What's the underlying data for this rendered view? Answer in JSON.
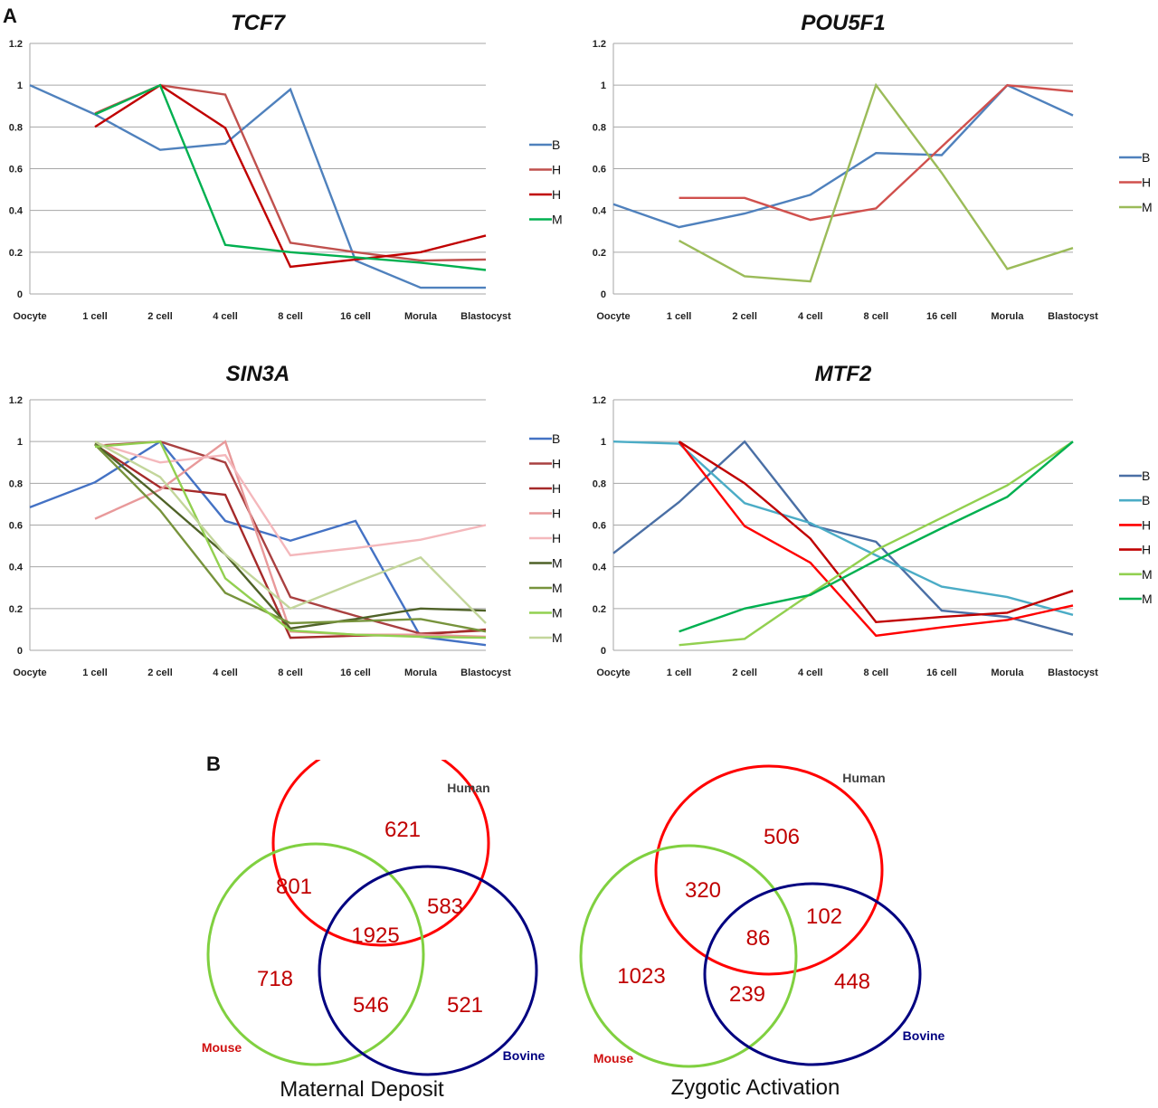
{
  "panel_labels": {
    "a": "A",
    "b": "B"
  },
  "chart_data": [
    {
      "type": "line",
      "title": "TCF7",
      "xlabel": "",
      "ylabel": "",
      "ylim": [
        0,
        1.2
      ],
      "yticks": [
        "0",
        "0.2",
        "0.4",
        "0.6",
        "0.8",
        "1",
        "1.2"
      ],
      "ytick_values": [
        0,
        0.2,
        0.4,
        0.6,
        0.8,
        1,
        1.2
      ],
      "grid": true,
      "legend": "right",
      "categories": [
        "Oocyte",
        "1 cell",
        "2 cell",
        "4 cell",
        "8 cell",
        "16 cell",
        "Morula",
        "Blastocyst"
      ],
      "series": [
        {
          "name": "B",
          "color": "#4f81bd",
          "values": [
            1.0,
            0.86,
            0.69,
            0.72,
            0.98,
            0.16,
            0.03,
            0.03
          ]
        },
        {
          "name": "H",
          "color": "#c0504d",
          "values": [
            null,
            0.865,
            1.0,
            0.955,
            0.245,
            0.2,
            0.16,
            0.165
          ]
        },
        {
          "name": "H",
          "color": "#c00000",
          "values": [
            null,
            0.8,
            1.0,
            0.795,
            0.13,
            0.165,
            0.2,
            0.28
          ]
        },
        {
          "name": "M",
          "color": "#00b050",
          "values": [
            null,
            0.86,
            1.0,
            0.235,
            0.2,
            0.175,
            0.15,
            0.115
          ]
        }
      ]
    },
    {
      "type": "line",
      "title": "POU5F1",
      "xlabel": "",
      "ylabel": "",
      "ylim": [
        0,
        1.2
      ],
      "yticks": [
        "0",
        "0.2",
        "0.4",
        "0.6",
        "0.8",
        "1",
        "1.2"
      ],
      "ytick_values": [
        0,
        0.2,
        0.4,
        0.6,
        0.8,
        1,
        1.2
      ],
      "grid": true,
      "legend": "right",
      "categories": [
        "Oocyte",
        "1 cell",
        "2 cell",
        "4 cell",
        "8 cell",
        "16 cell",
        "Morula",
        "Blastocyst"
      ],
      "series": [
        {
          "name": "B",
          "color": "#4f81bd",
          "values": [
            0.43,
            0.32,
            0.385,
            0.475,
            0.675,
            0.665,
            1.0,
            0.855
          ]
        },
        {
          "name": "H",
          "color": "#d0504d",
          "values": [
            null,
            0.46,
            0.46,
            0.355,
            0.41,
            0.705,
            1.0,
            0.97
          ]
        },
        {
          "name": "M",
          "color": "#9bbb59",
          "values": [
            null,
            0.255,
            0.085,
            0.06,
            1.0,
            0.58,
            0.12,
            0.22
          ]
        }
      ]
    },
    {
      "type": "line",
      "title": "SIN3A",
      "xlabel": "",
      "ylabel": "",
      "ylim": [
        0,
        1.2
      ],
      "yticks": [
        "0",
        "0.2",
        "0.4",
        "0.6",
        "0.8",
        "1",
        "1.2"
      ],
      "ytick_values": [
        0,
        0.2,
        0.4,
        0.6,
        0.8,
        1,
        1.2
      ],
      "grid": true,
      "legend": "right",
      "categories": [
        "Oocyte",
        "1 cell",
        "2 cell",
        "4 cell",
        "8 cell",
        "16 cell",
        "Morula",
        "Blastocyst"
      ],
      "series": [
        {
          "name": "B",
          "color": "#4472c4",
          "values": [
            0.685,
            0.805,
            1.0,
            0.62,
            0.525,
            0.62,
            0.065,
            0.025
          ]
        },
        {
          "name": "H",
          "color": "#a94040",
          "values": [
            null,
            0.98,
            1.0,
            0.9,
            0.255,
            0.165,
            0.08,
            0.095
          ]
        },
        {
          "name": "H",
          "color": "#a52a2a",
          "values": [
            null,
            0.985,
            0.78,
            0.745,
            0.06,
            0.07,
            0.075,
            0.1
          ]
        },
        {
          "name": "H",
          "color": "#e8999a",
          "values": [
            null,
            0.63,
            0.77,
            1.0,
            0.09,
            0.075,
            0.075,
            0.065
          ]
        },
        {
          "name": "H",
          "color": "#f4b8bc",
          "values": [
            null,
            0.995,
            0.9,
            0.935,
            0.455,
            0.49,
            0.53,
            0.6
          ]
        },
        {
          "name": "M",
          "color": "#4f6228",
          "values": [
            null,
            0.99,
            0.73,
            0.46,
            0.105,
            0.15,
            0.2,
            0.19
          ]
        },
        {
          "name": "M",
          "color": "#77933c",
          "values": [
            null,
            0.985,
            0.67,
            0.275,
            0.13,
            0.14,
            0.15,
            0.09
          ]
        },
        {
          "name": "M",
          "color": "#92d050",
          "values": [
            null,
            0.975,
            1.0,
            0.345,
            0.095,
            0.075,
            0.065,
            0.06
          ]
        },
        {
          "name": "M",
          "color": "#c3d69b",
          "values": [
            null,
            1.0,
            0.83,
            0.46,
            0.2,
            0.325,
            0.445,
            0.13
          ]
        }
      ]
    },
    {
      "type": "line",
      "title": "MTF2",
      "xlabel": "",
      "ylabel": "",
      "ylim": [
        0,
        1.2
      ],
      "yticks": [
        "0",
        "0.2",
        "0.4",
        "0.6",
        "0.8",
        "1",
        "1.2"
      ],
      "ytick_values": [
        0,
        0.2,
        0.4,
        0.6,
        0.8,
        1,
        1.2
      ],
      "grid": true,
      "legend": "right",
      "categories": [
        "Oocyte",
        "1 cell",
        "2 cell",
        "4 cell",
        "8 cell",
        "16 cell",
        "Morula",
        "Blastocyst"
      ],
      "series": [
        {
          "name": "B",
          "color": "#4a6fa5",
          "values": [
            0.465,
            0.71,
            1.0,
            0.6,
            0.52,
            0.19,
            0.16,
            0.075
          ]
        },
        {
          "name": "B",
          "color": "#4bacc6",
          "values": [
            1.0,
            0.99,
            0.705,
            0.61,
            0.455,
            0.305,
            0.255,
            0.17
          ]
        },
        {
          "name": "H",
          "color": "#ff0000",
          "values": [
            null,
            1.0,
            0.595,
            0.42,
            0.07,
            0.11,
            0.145,
            0.215
          ]
        },
        {
          "name": "H",
          "color": "#c00000",
          "values": [
            null,
            1.0,
            0.8,
            0.535,
            0.135,
            0.16,
            0.18,
            0.285
          ]
        },
        {
          "name": "M",
          "color": "#92d050",
          "values": [
            null,
            0.025,
            0.055,
            0.27,
            0.48,
            0.635,
            0.79,
            1.0
          ]
        },
        {
          "name": "M",
          "color": "#00b050",
          "values": [
            null,
            0.09,
            0.2,
            0.265,
            0.43,
            0.585,
            0.735,
            1.0
          ]
        }
      ]
    }
  ],
  "venn": [
    {
      "title": "Maternal Deposit",
      "sets": [
        {
          "name": "Human",
          "color": "#ff0000",
          "label_color": "#404040"
        },
        {
          "name": "Mouse",
          "color": "#80d040",
          "label_color": "#d01010"
        },
        {
          "name": "Bovine",
          "color": "#000080",
          "label_color": "#000080"
        }
      ],
      "regions": {
        "human_only": "621",
        "human_mouse": "801",
        "human_bovine": "583",
        "all_three": "1925",
        "mouse_only": "718",
        "mouse_bovine": "546",
        "bovine_only": "521"
      }
    },
    {
      "title": "Zygotic Activation",
      "sets": [
        {
          "name": "Human",
          "color": "#ff0000",
          "label_color": "#404040"
        },
        {
          "name": "Mouse",
          "color": "#80d040",
          "label_color": "#d01010"
        },
        {
          "name": "Bovine",
          "color": "#000080",
          "label_color": "#000080"
        }
      ],
      "regions": {
        "human_only": "506",
        "human_mouse": "320",
        "human_bovine": "102",
        "all_three": "86",
        "mouse_only": "1023",
        "mouse_bovine": "239",
        "bovine_only": "448"
      }
    }
  ],
  "number_color": "#c00000"
}
